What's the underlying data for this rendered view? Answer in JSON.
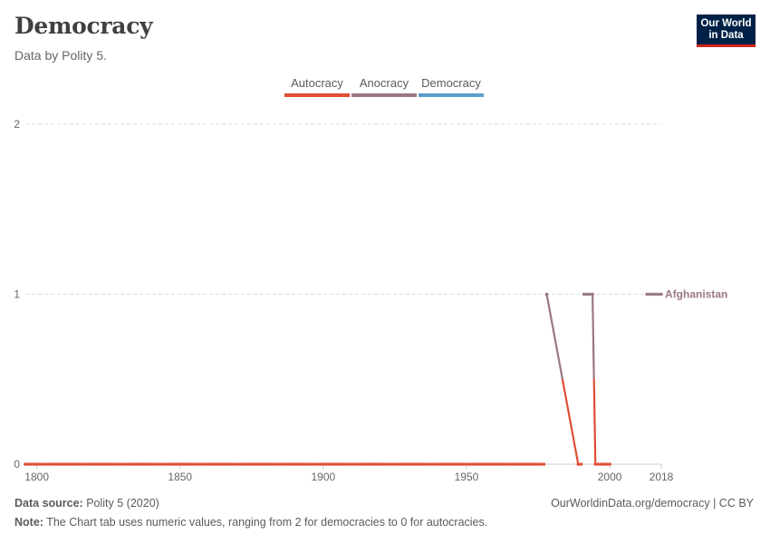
{
  "header": {
    "title": "Democracy",
    "subtitle": "Data by Polity 5."
  },
  "logo": {
    "line1": "Our World",
    "line2": "in Data"
  },
  "legend": [
    {
      "label": "Autocracy",
      "color": "#e04e35"
    },
    {
      "label": "Anocracy",
      "color": "#9a7783"
    },
    {
      "label": "Democracy",
      "color": "#5c9ec9"
    }
  ],
  "footer": {
    "source_label": "Data source:",
    "source_text": "Polity 5 (2020)",
    "url": "OurWorldinData.org/democracy | CC BY",
    "note_label": "Note:",
    "note_text": "The Chart tab uses numeric values, ranging from 2 for democracies to 0 for autocracies."
  },
  "chart_data": {
    "type": "line",
    "title": "Democracy",
    "subtitle": "Data by Polity 5.",
    "xlim": [
      1796,
      2018
    ],
    "ylim": [
      0,
      2
    ],
    "x_ticks": [
      1800,
      1850,
      1900,
      1950,
      2000,
      2018
    ],
    "y_ticks": [
      0,
      1,
      2
    ],
    "grid": true,
    "legend_placement": "top-center",
    "color_scale": {
      "autocracy_color": "#e04e35",
      "anocracy_color": "#9a7783",
      "democracy_color": "#5c9ec9"
    },
    "series": [
      {
        "name": "Afghanistan",
        "segments": [
          {
            "from": 1796,
            "to": 1977,
            "value": 0
          },
          {
            "x": [
              1978,
              1989,
              1990
            ],
            "y": [
              1,
              0,
              0
            ]
          },
          {
            "x": [
              1991,
              1992,
              1993,
              1994,
              1995
            ],
            "y": [
              1,
              1,
              1,
              1,
              0
            ]
          },
          {
            "x": [
              1996,
              1997,
              1998,
              1999,
              2000
            ],
            "y": [
              0,
              0,
              0,
              0,
              0
            ]
          },
          {
            "x": [
              2013,
              2014,
              2015,
              2016,
              2017,
              2018
            ],
            "y": [
              1,
              1,
              1,
              1,
              1,
              1
            ]
          }
        ]
      }
    ]
  }
}
